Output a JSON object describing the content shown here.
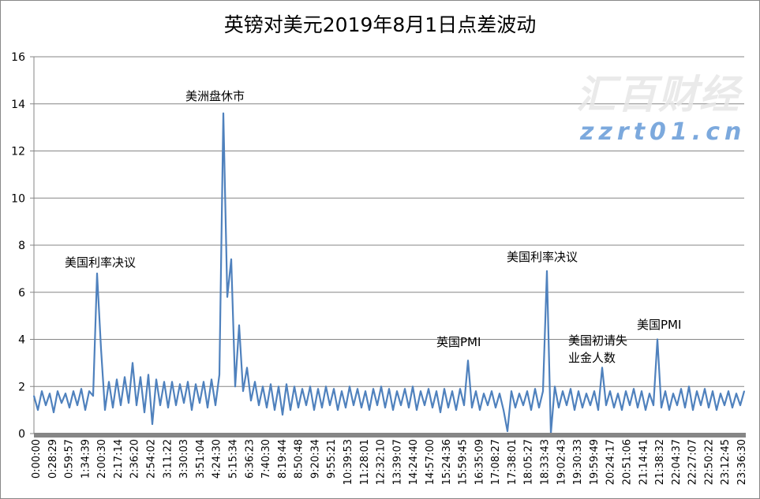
{
  "chart_data": {
    "type": "line",
    "title": "英镑对美元2019年8月1日点差波动",
    "xlabel": "",
    "ylabel": "",
    "ylim": [
      0,
      16
    ],
    "yticks": [
      0,
      2,
      4,
      6,
      8,
      10,
      12,
      14,
      16
    ],
    "grid": true,
    "legend": "none",
    "series_color": "#4f81bd",
    "x_tick_labels": [
      "0:00:00",
      "0:28:29",
      "0:59:57",
      "1:34:39",
      "2:00:30",
      "2:17:14",
      "2:36:20",
      "2:54:02",
      "3:11:22",
      "3:30:03",
      "3:51:04",
      "4:24:30",
      "5:15:34",
      "6:36:23",
      "7:40:30",
      "8:19:44",
      "8:50:48",
      "9:20:34",
      "9:55:21",
      "10:39:53",
      "11:28:01",
      "12:32:10",
      "13:39:07",
      "14:24:40",
      "14:57:00",
      "15:24:36",
      "15:59:45",
      "16:35:09",
      "17:08:27",
      "17:38:01",
      "18:05:27",
      "18:33:43",
      "19:02:43",
      "19:30:33",
      "19:59:49",
      "20:24:17",
      "20:51:06",
      "21:14:41",
      "21:38:32",
      "22:04:37",
      "22:27:07",
      "22:50:22",
      "23:12:45",
      "23:36:30"
    ],
    "values": [
      1.6,
      1.0,
      1.8,
      1.2,
      1.7,
      0.9,
      1.8,
      1.3,
      1.7,
      1.1,
      1.8,
      1.2,
      1.9,
      1.0,
      1.8,
      1.6,
      6.8,
      3.6,
      1.0,
      2.2,
      1.1,
      2.3,
      1.2,
      2.4,
      1.3,
      3.0,
      1.2,
      2.4,
      0.9,
      2.5,
      0.4,
      2.3,
      1.2,
      2.2,
      1.1,
      2.2,
      1.2,
      2.1,
      1.3,
      2.2,
      1.0,
      2.1,
      1.3,
      2.2,
      1.1,
      2.3,
      1.2,
      2.5,
      13.6,
      5.8,
      7.4,
      2.0,
      4.6,
      1.8,
      2.8,
      1.4,
      2.2,
      1.2,
      2.0,
      1.1,
      2.1,
      1.0,
      2.0,
      0.8,
      2.1,
      1.0,
      2.0,
      1.1,
      1.9,
      1.2,
      2.0,
      1.0,
      1.9,
      1.1,
      2.0,
      1.2,
      1.9,
      1.0,
      1.8,
      1.1,
      2.0,
      1.2,
      1.9,
      1.1,
      1.8,
      1.0,
      1.9,
      1.2,
      2.0,
      1.1,
      1.9,
      1.0,
      1.8,
      1.2,
      1.9,
      1.1,
      2.0,
      1.0,
      1.8,
      1.2,
      1.9,
      1.1,
      1.8,
      0.9,
      1.9,
      1.1,
      1.8,
      1.0,
      1.9,
      1.2,
      3.1,
      1.1,
      1.8,
      1.0,
      1.7,
      1.2,
      1.8,
      1.1,
      1.7,
      1.0,
      0.1,
      1.8,
      1.1,
      1.7,
      1.2,
      1.8,
      1.0,
      1.9,
      1.1,
      1.8,
      6.9,
      0.0,
      2.0,
      1.1,
      1.8,
      1.2,
      1.9,
      1.0,
      1.8,
      1.1,
      1.7,
      1.2,
      1.8,
      1.0,
      2.8,
      1.2,
      1.8,
      1.1,
      1.7,
      1.0,
      1.8,
      1.2,
      1.9,
      1.1,
      1.8,
      1.0,
      1.7,
      1.2,
      4.0,
      1.1,
      1.8,
      1.0,
      1.7,
      1.2,
      1.9,
      1.1,
      2.0,
      1.0,
      1.8,
      1.2,
      1.9,
      1.1,
      1.8,
      1.0,
      1.7,
      1.2,
      1.8,
      1.1,
      1.7,
      1.2,
      1.8
    ],
    "annotations": [
      {
        "text": "美国利率决议"
      },
      {
        "text": "美洲盘休市"
      },
      {
        "text": "英国PMI"
      },
      {
        "text": "美国利率决议"
      },
      {
        "text": "美国初请失",
        "text2": "业金人数"
      },
      {
        "text": "美国PMI"
      }
    ]
  },
  "watermark": {
    "text": "汇百财经",
    "url_text": "zzrt01.cn"
  }
}
